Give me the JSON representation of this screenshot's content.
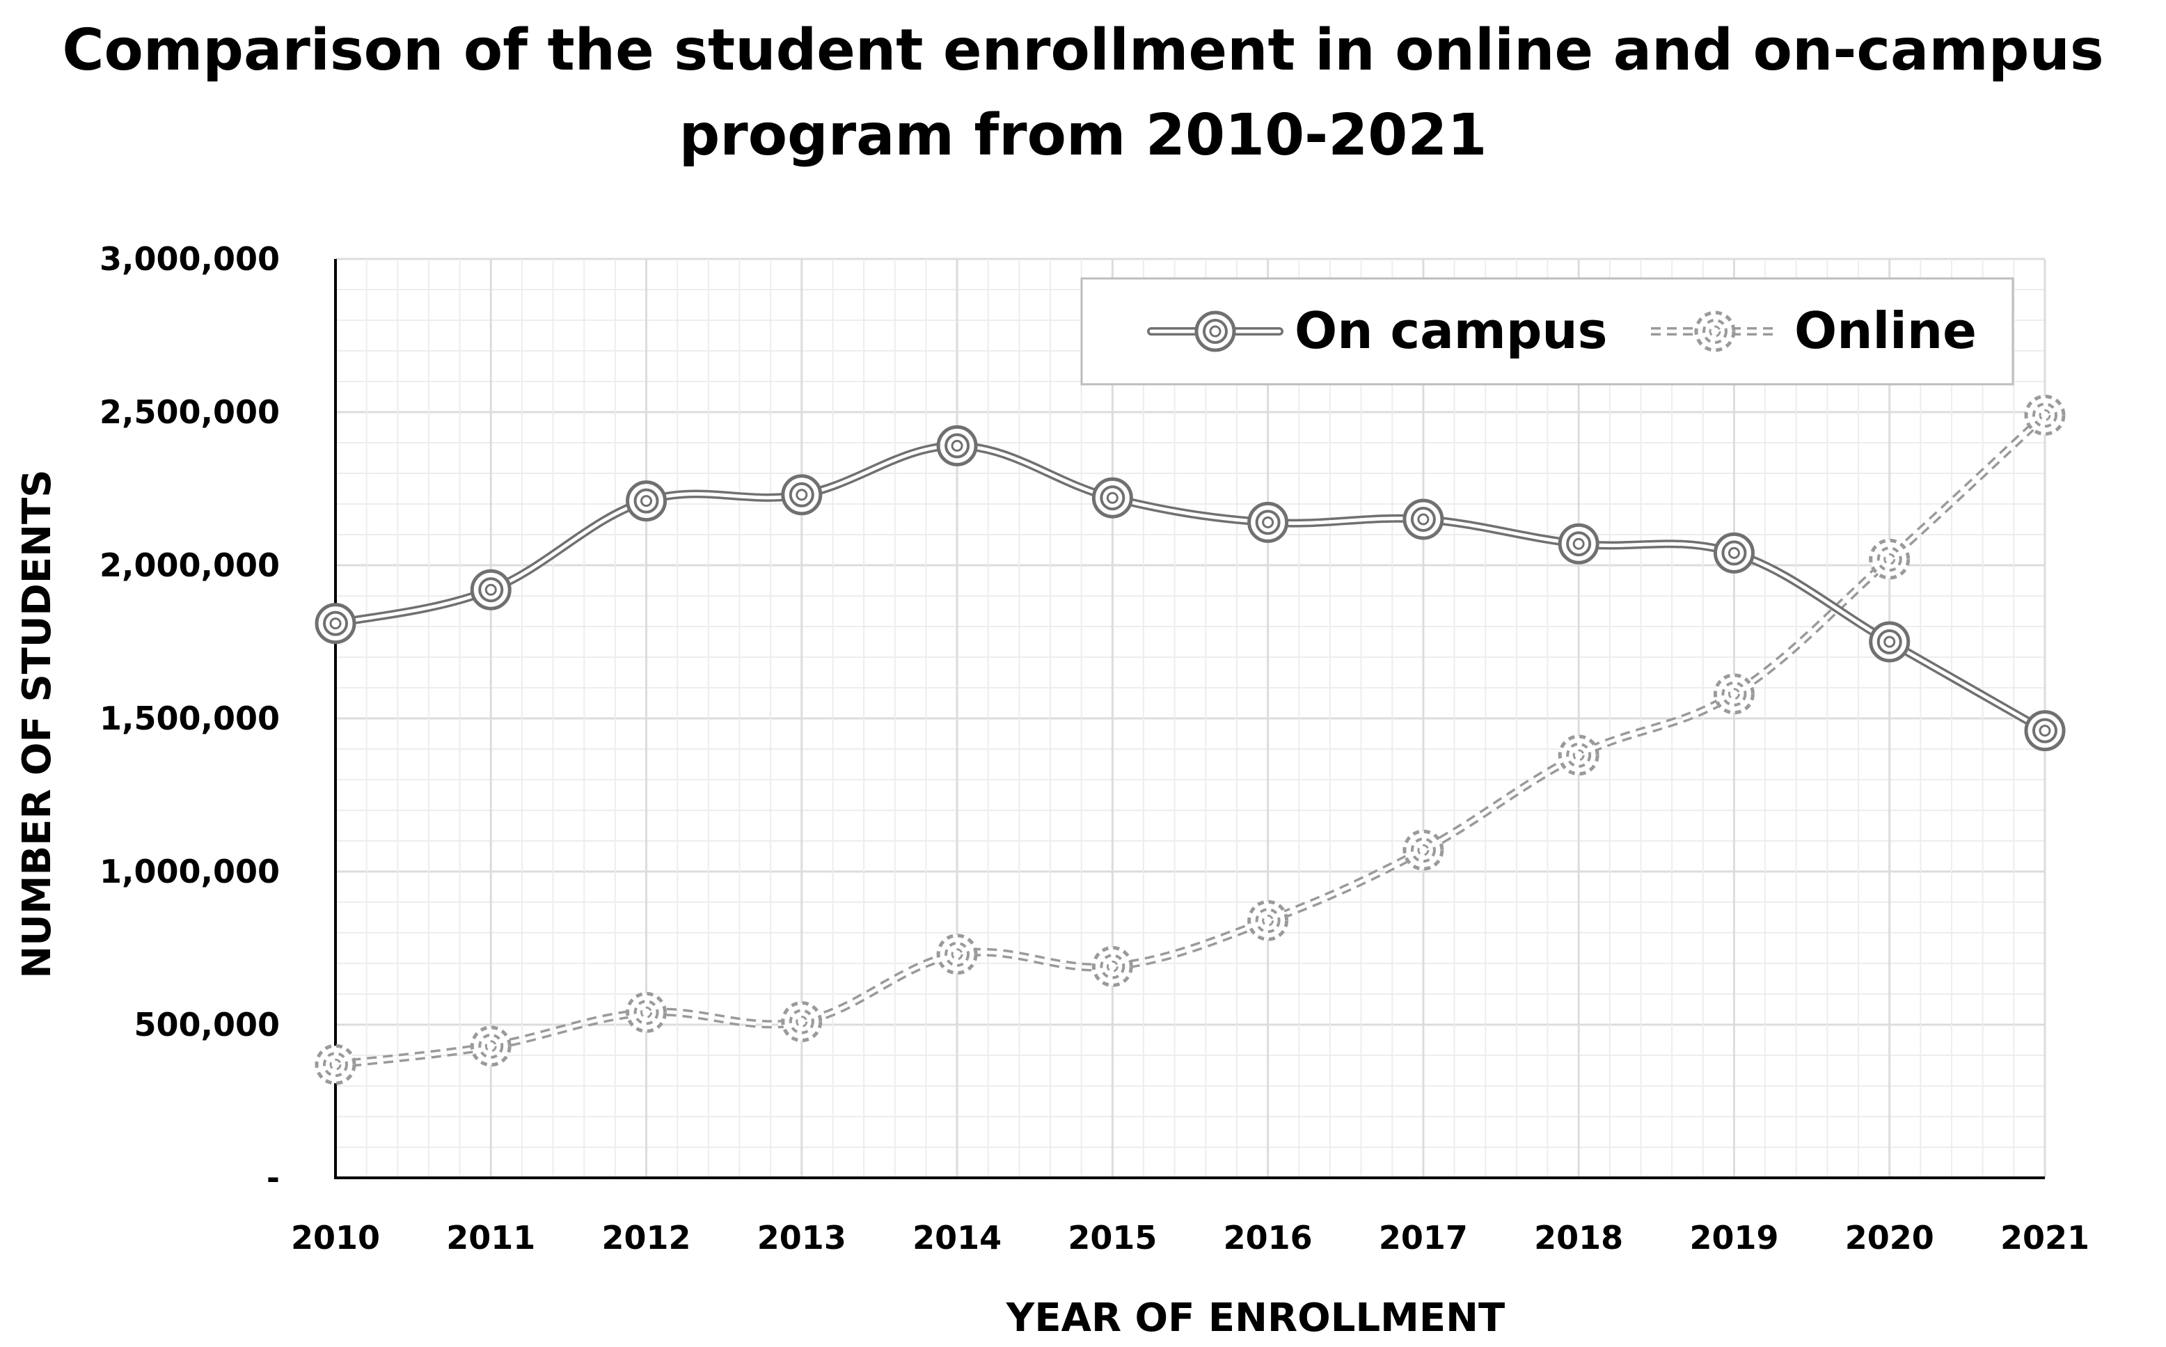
{
  "chart_data": {
    "type": "line",
    "title_lines": [
      "Comparison of the student enrollment in online and on-campus",
      "program from 2010-2021"
    ],
    "xlabel": "YEAR OF ENROLLMENT",
    "ylabel": "NUMBER OF STUDENTS",
    "categories": [
      "2010",
      "2011",
      "2012",
      "2013",
      "2014",
      "2015",
      "2016",
      "2017",
      "2018",
      "2019",
      "2020",
      "2021"
    ],
    "ylim": [
      0,
      3000000
    ],
    "y_ticks": [
      0,
      500000,
      1000000,
      1500000,
      2000000,
      2500000,
      3000000
    ],
    "y_tick_labels": [
      "-",
      "500,000",
      "1,000,000",
      "1,500,000",
      "2,000,000",
      "2,500,000",
      "3,000,000"
    ],
    "grid": true,
    "legend_position": "top-right",
    "series": [
      {
        "name": "On campus",
        "style": "solid",
        "color": "#707070",
        "values": [
          1810000,
          1920000,
          2210000,
          2230000,
          2390000,
          2220000,
          2140000,
          2150000,
          2070000,
          2040000,
          1750000,
          1460000
        ]
      },
      {
        "name": "Online",
        "style": "dashed",
        "color": "#9a9a9a",
        "values": [
          370000,
          430000,
          540000,
          510000,
          730000,
          690000,
          840000,
          1070000,
          1380000,
          1580000,
          2020000,
          2490000
        ]
      }
    ]
  }
}
